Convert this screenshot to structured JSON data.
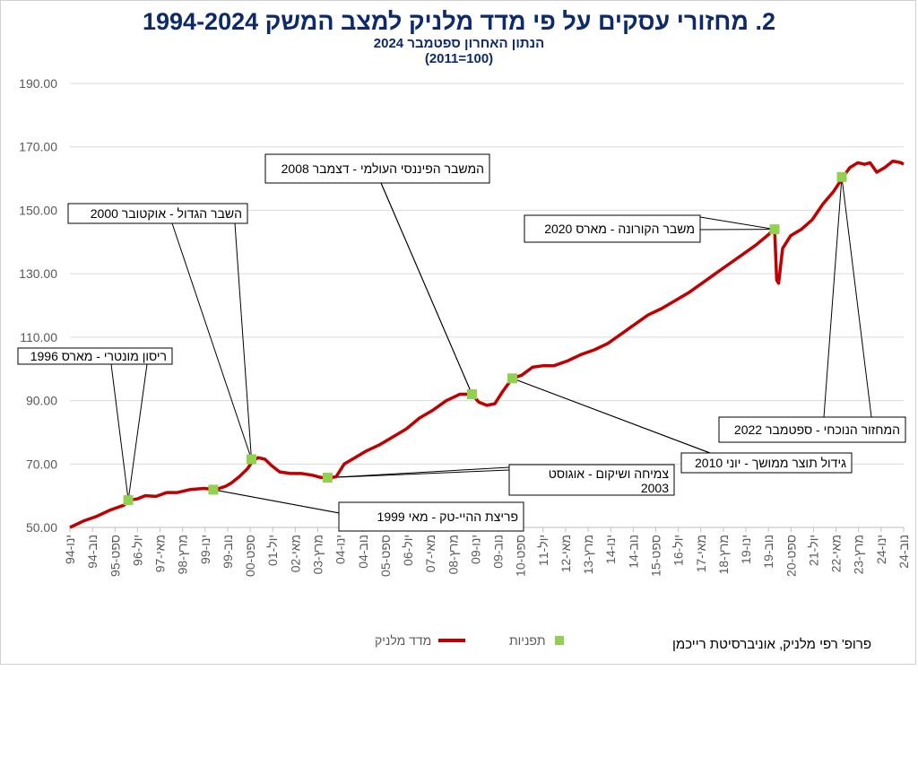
{
  "header": {
    "title": "2. מחזורי עסקים על פי מדד מלניק למצב המשק 1994-2024",
    "subtitle1": "הנתון האחרון ספטמבר 2024",
    "subtitle2": "(100=2011)"
  },
  "legend": {
    "series_label": "מדד מלניק",
    "points_label": "תפניות"
  },
  "credit": "פרופ' רפי מלניק, אוניברסיטת רייכמן",
  "colors": {
    "line": "#c00000",
    "marker": "#92d050",
    "title": "#0d2a6b",
    "grid": "#d9d9d9"
  },
  "chart_data": {
    "type": "line",
    "ylim": [
      50,
      190
    ],
    "yticks": [
      "50.00",
      "70.00",
      "90.00",
      "110.00",
      "130.00",
      "150.00",
      "170.00",
      "190.00"
    ],
    "xtick_labels": [
      "ינו-94",
      "נוב-94",
      "ספט-95",
      "יול-96",
      "מאי-97",
      "מרץ-98",
      "ינו-99",
      "נוב-99",
      "ספט-00",
      "יול-01",
      "מאי-02",
      "מרץ-03",
      "ינו-04",
      "נוב-04",
      "ספט-05",
      "יול-06",
      "מאי-07",
      "מרץ-08",
      "ינו-09",
      "נוב-09",
      "ספט-10",
      "יול-11",
      "מאי-12",
      "מרץ-13",
      "ינו-14",
      "נוב-14",
      "ספט-15",
      "יול-16",
      "מאי-17",
      "מרץ-18",
      "ינו-19",
      "נוב-19",
      "ספט-20",
      "יול-21",
      "מאי-22",
      "מרץ-23",
      "ינו-24",
      "נוב-24"
    ],
    "series": [
      {
        "name": "מדד מלניק",
        "points": [
          [
            1994.0,
            50.0
          ],
          [
            1994.5,
            52.0
          ],
          [
            1995.0,
            53.5
          ],
          [
            1995.5,
            55.5
          ],
          [
            1996.0,
            57.0
          ],
          [
            1996.2,
            58.6
          ],
          [
            1996.5,
            59.0
          ],
          [
            1996.8,
            60.0
          ],
          [
            1997.2,
            59.8
          ],
          [
            1997.6,
            61.0
          ],
          [
            1998.0,
            61.0
          ],
          [
            1998.5,
            62.0
          ],
          [
            1999.0,
            62.3
          ],
          [
            1999.4,
            61.9
          ],
          [
            1999.8,
            63.0
          ],
          [
            2000.0,
            64.0
          ],
          [
            2000.3,
            66.0
          ],
          [
            2000.6,
            68.5
          ],
          [
            2000.8,
            71.0
          ],
          [
            2001.0,
            72.0
          ],
          [
            2001.25,
            71.5
          ],
          [
            2001.5,
            69.5
          ],
          [
            2001.8,
            67.5
          ],
          [
            2002.2,
            67.0
          ],
          [
            2002.6,
            67.0
          ],
          [
            2003.0,
            66.5
          ],
          [
            2003.3,
            65.8
          ],
          [
            2003.6,
            65.5
          ],
          [
            2003.9,
            66.0
          ],
          [
            2004.2,
            70.0
          ],
          [
            2004.6,
            72.0
          ],
          [
            2005.0,
            74.0
          ],
          [
            2005.5,
            76.0
          ],
          [
            2006.0,
            78.5
          ],
          [
            2006.5,
            81.0
          ],
          [
            2007.0,
            84.5
          ],
          [
            2007.5,
            87.0
          ],
          [
            2008.0,
            90.0
          ],
          [
            2008.5,
            92.0
          ],
          [
            2008.95,
            92.0
          ],
          [
            2009.2,
            89.5
          ],
          [
            2009.5,
            88.5
          ],
          [
            2009.8,
            89.0
          ],
          [
            2010.1,
            93.0
          ],
          [
            2010.45,
            97.0
          ],
          [
            2010.8,
            98.0
          ],
          [
            2011.2,
            100.5
          ],
          [
            2011.6,
            101.0
          ],
          [
            2012.0,
            101.0
          ],
          [
            2012.5,
            102.5
          ],
          [
            2013.0,
            104.5
          ],
          [
            2013.5,
            106.0
          ],
          [
            2014.0,
            108.0
          ],
          [
            2014.5,
            111.0
          ],
          [
            2015.0,
            114.0
          ],
          [
            2015.5,
            117.0
          ],
          [
            2016.0,
            119.0
          ],
          [
            2016.5,
            121.5
          ],
          [
            2017.0,
            124.0
          ],
          [
            2017.5,
            127.0
          ],
          [
            2018.0,
            130.0
          ],
          [
            2018.5,
            133.0
          ],
          [
            2019.0,
            136.0
          ],
          [
            2019.5,
            139.0
          ],
          [
            2020.0,
            142.5
          ],
          [
            2020.2,
            144.5
          ],
          [
            2020.28,
            128.0
          ],
          [
            2020.35,
            127.0
          ],
          [
            2020.5,
            138.0
          ],
          [
            2020.8,
            142.0
          ],
          [
            2021.2,
            144.0
          ],
          [
            2021.6,
            147.0
          ],
          [
            2022.0,
            152.0
          ],
          [
            2022.4,
            156.0
          ],
          [
            2022.75,
            160.5
          ],
          [
            2023.0,
            163.5
          ],
          [
            2023.3,
            165.0
          ],
          [
            2023.55,
            164.5
          ],
          [
            2023.75,
            165.0
          ],
          [
            2024.0,
            162.0
          ],
          [
            2024.3,
            163.5
          ],
          [
            2024.6,
            165.5
          ],
          [
            2024.9,
            165.0
          ],
          [
            2025.0,
            164.5
          ]
        ]
      }
    ],
    "turning_points": [
      {
        "x": 1996.17,
        "y": 58.6,
        "label": "ריסון מונטרי - מארס 1996"
      },
      {
        "x": 1999.33,
        "y": 61.9,
        "label": "פריצת ההיי-טק - מאי 1999"
      },
      {
        "x": 2000.75,
        "y": 71.5,
        "label": "השבר הגדול - אוקטובר 2000"
      },
      {
        "x": 2003.58,
        "y": 65.7,
        "label": "צמיחה ושיקום - אוגוסט 2003"
      },
      {
        "x": 2008.95,
        "y": 92.0,
        "label": "המשבר הפיננסי העולמי - דצמבר 2008"
      },
      {
        "x": 2010.45,
        "y": 97.0,
        "label": "גידול תוצר ממושך - יוני 2010"
      },
      {
        "x": 2020.2,
        "y": 144.0,
        "label": "משבר הקורונה - מארס 2020"
      },
      {
        "x": 2022.7,
        "y": 160.5,
        "label": "המחזור הנוכחי - ספטמבר 2022"
      }
    ]
  }
}
